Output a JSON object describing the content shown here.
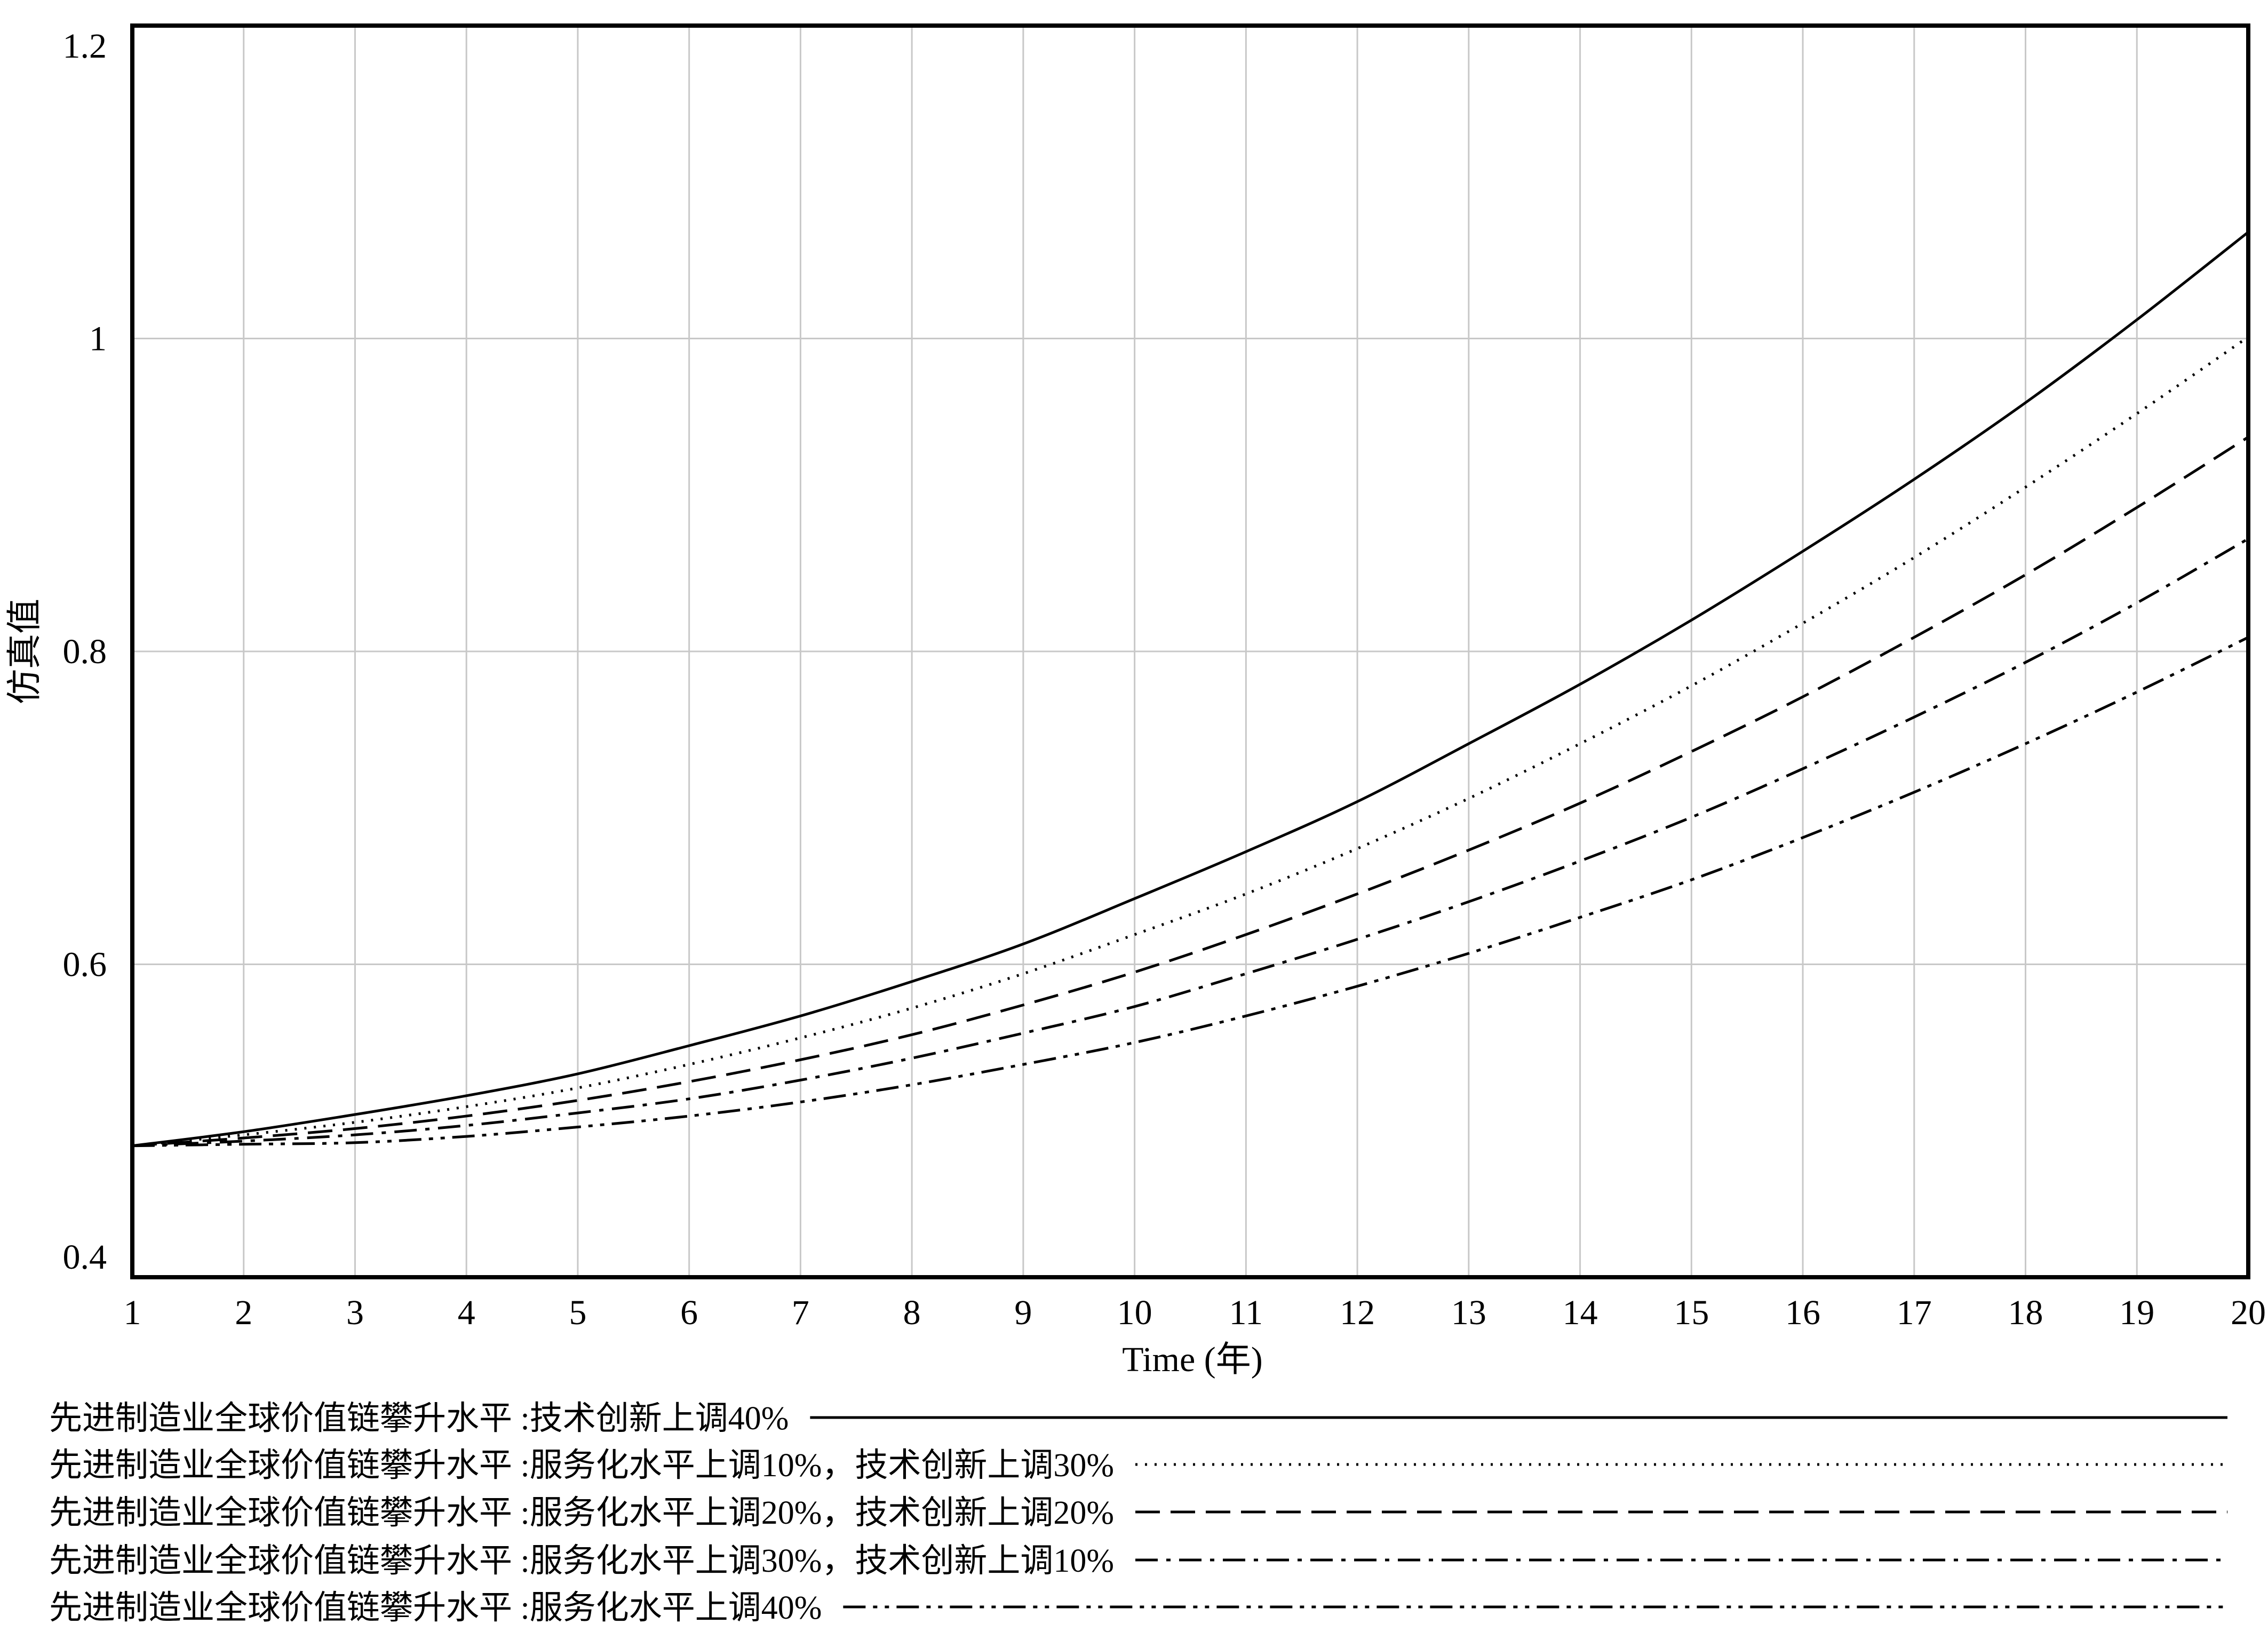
{
  "chart_data": {
    "type": "line",
    "xlabel": "Time (年)",
    "ylabel": "仿真值",
    "xlim": [
      1,
      20
    ],
    "ylim": [
      0.4,
      1.2
    ],
    "grid": true,
    "legend_position": "bottom",
    "x": [
      1,
      2,
      3,
      4,
      5,
      6,
      7,
      8,
      9,
      10,
      11,
      12,
      13,
      14,
      15,
      16,
      17,
      18,
      19,
      20
    ],
    "x_ticks": [
      "1",
      "2",
      "3",
      "4",
      "5",
      "6",
      "7",
      "8",
      "9",
      "10",
      "11",
      "12",
      "13",
      "14",
      "15",
      "16",
      "17",
      "18",
      "19",
      "20"
    ],
    "y_ticks": [
      "0.4",
      "0.6",
      "0.8",
      "1",
      "1.2"
    ],
    "y_tick_values": [
      0.4,
      0.6,
      0.8,
      1.0,
      1.2
    ],
    "series": [
      {
        "name": "先进制造业全球价值链攀升水平 :技术创新上调40%",
        "style": "solid",
        "values": [
          0.484,
          0.493,
          0.504,
          0.516,
          0.53,
          0.548,
          0.567,
          0.589,
          0.613,
          0.642,
          0.672,
          0.704,
          0.741,
          0.779,
          0.82,
          0.864,
          0.91,
          0.959,
          1.012,
          1.068
        ]
      },
      {
        "name": "先进制造业全球价值链攀升水平 :服务化水平上调10%，技术创新上调30%",
        "style": "dotted",
        "values": [
          0.484,
          0.491,
          0.499,
          0.509,
          0.521,
          0.536,
          0.553,
          0.572,
          0.594,
          0.619,
          0.645,
          0.674,
          0.706,
          0.741,
          0.778,
          0.818,
          0.86,
          0.905,
          0.952,
          1.001
        ]
      },
      {
        "name": "先进制造业全球价值链攀升水平 :服务化水平上调20%，技术创新上调20%",
        "style": "dashed",
        "values": [
          0.484,
          0.489,
          0.495,
          0.503,
          0.513,
          0.525,
          0.539,
          0.555,
          0.574,
          0.595,
          0.619,
          0.645,
          0.673,
          0.703,
          0.736,
          0.771,
          0.809,
          0.849,
          0.892,
          0.937
        ]
      },
      {
        "name": "先进制造业全球价值链攀升水平 :服务化水平上调30%，技术创新上调10%",
        "style": "dashdot",
        "values": [
          0.484,
          0.487,
          0.491,
          0.497,
          0.505,
          0.514,
          0.526,
          0.54,
          0.556,
          0.573,
          0.594,
          0.616,
          0.64,
          0.666,
          0.694,
          0.725,
          0.758,
          0.793,
          0.831,
          0.872
        ]
      },
      {
        "name": "先进制造业全球价值链攀升水平 :服务化水平上调40%",
        "style": "dashdotdot",
        "values": [
          0.484,
          0.485,
          0.486,
          0.49,
          0.496,
          0.503,
          0.512,
          0.523,
          0.536,
          0.55,
          0.567,
          0.586,
          0.607,
          0.63,
          0.654,
          0.681,
          0.71,
          0.741,
          0.774,
          0.809
        ]
      }
    ]
  }
}
